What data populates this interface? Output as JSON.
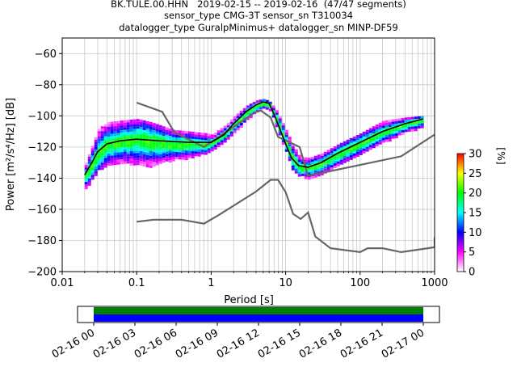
{
  "title": {
    "line1": "BK.TULE.00.HHN   2019-02-15 -- 2019-02-16  (47/47 segments)",
    "line2": "sensor_type CMG-3T sensor_sn T310034",
    "line3": "datalogger_type GuralpMinimus+ datalogger_sn MINP-DF59"
  },
  "chart_data": [
    {
      "type": "heatmap",
      "title": "BK.TULE.00.HHN   2019-02-15 -- 2019-02-16  (47/47 segments)",
      "xlabel": "Period [s]",
      "ylabel": "Power [m²/s⁴/Hz] [dB]",
      "x_scale": "log",
      "xlim": [
        0.01,
        1000
      ],
      "ylim": [
        -200,
        -50
      ],
      "grid": true,
      "x_ticks": [
        {
          "value": 0.01,
          "label": "0.01"
        },
        {
          "value": 0.1,
          "label": "0.1"
        },
        {
          "value": 1,
          "label": "1"
        },
        {
          "value": 10,
          "label": "10"
        },
        {
          "value": 100,
          "label": "100"
        },
        {
          "value": 1000,
          "label": "1000"
        }
      ],
      "y_ticks": [
        {
          "value": -60,
          "label": "−60"
        },
        {
          "value": -80,
          "label": "−80"
        },
        {
          "value": -100,
          "label": "−100"
        },
        {
          "value": -120,
          "label": "−120"
        },
        {
          "value": -140,
          "label": "−140"
        },
        {
          "value": -160,
          "label": "−160"
        },
        {
          "value": -180,
          "label": "−180"
        },
        {
          "value": -200,
          "label": "−200"
        }
      ],
      "colorbar": {
        "label": "[%]",
        "range": [
          0,
          30
        ],
        "ticks": [
          {
            "value": 0,
            "label": "0"
          },
          {
            "value": 5,
            "label": "5"
          },
          {
            "value": 10,
            "label": "10"
          },
          {
            "value": 15,
            "label": "15"
          },
          {
            "value": 20,
            "label": "20"
          },
          {
            "value": 25,
            "label": "25"
          },
          {
            "value": 30,
            "label": "30"
          }
        ],
        "colors": [
          "#ffffff",
          "#ff00ff",
          "#0000ff",
          "#00ffff",
          "#00ff00",
          "#ffff00",
          "#ff0000"
        ]
      },
      "psd_band": [
        {
          "period": 0.02,
          "low": -146,
          "high": -130,
          "mean": -138
        },
        {
          "period": 0.025,
          "low": -140,
          "high": -118,
          "mean": -130
        },
        {
          "period": 0.03,
          "low": -134,
          "high": -108,
          "mean": -123
        },
        {
          "period": 0.04,
          "low": -132,
          "high": -104,
          "mean": -118
        },
        {
          "period": 0.06,
          "low": -130,
          "high": -103,
          "mean": -116
        },
        {
          "period": 0.1,
          "low": -131,
          "high": -102,
          "mean": -115
        },
        {
          "period": 0.15,
          "low": -132,
          "high": -104,
          "mean": -116
        },
        {
          "period": 0.2,
          "low": -130,
          "high": -106,
          "mean": -117
        },
        {
          "period": 0.3,
          "low": -128,
          "high": -109,
          "mean": -118
        },
        {
          "period": 0.5,
          "low": -127,
          "high": -110,
          "mean": -118
        },
        {
          "period": 0.8,
          "low": -124,
          "high": -111,
          "mean": -118
        },
        {
          "period": 1.0,
          "low": -122,
          "high": -112,
          "mean": -117
        },
        {
          "period": 1.5,
          "low": -116,
          "high": -106,
          "mean": -111
        },
        {
          "period": 2.0,
          "low": -110,
          "high": -100,
          "mean": -105
        },
        {
          "period": 3.0,
          "low": -102,
          "high": -93,
          "mean": -97
        },
        {
          "period": 4.0,
          "low": -97,
          "high": -90,
          "mean": -93
        },
        {
          "period": 5.0,
          "low": -95,
          "high": -89,
          "mean": -91
        },
        {
          "period": 6.0,
          "low": -96,
          "high": -91,
          "mean": -93
        },
        {
          "period": 7.0,
          "low": -104,
          "high": -95,
          "mean": -100
        },
        {
          "period": 8.0,
          "low": -112,
          "high": -100,
          "mean": -106
        },
        {
          "period": 10.0,
          "low": -124,
          "high": -110,
          "mean": -118
        },
        {
          "period": 12.0,
          "low": -134,
          "high": -118,
          "mean": -127
        },
        {
          "period": 15.0,
          "low": -138,
          "high": -126,
          "mean": -133
        },
        {
          "period": 20.0,
          "low": -140,
          "high": -127,
          "mean": -133
        },
        {
          "period": 30.0,
          "low": -137,
          "high": -124,
          "mean": -130
        },
        {
          "period": 50.0,
          "low": -132,
          "high": -118,
          "mean": -124
        },
        {
          "period": 100.0,
          "low": -125,
          "high": -111,
          "mean": -117
        },
        {
          "period": 200.0,
          "low": -117,
          "high": -103,
          "mean": -110
        },
        {
          "period": 400.0,
          "low": -110,
          "high": -101,
          "mean": -105
        },
        {
          "period": 700.0,
          "low": -107,
          "high": -100,
          "mean": -102
        }
      ],
      "mean_curve": [
        [
          0.02,
          -138
        ],
        [
          0.025,
          -130
        ],
        [
          0.03,
          -123
        ],
        [
          0.04,
          -118
        ],
        [
          0.06,
          -116
        ],
        [
          0.1,
          -115
        ],
        [
          0.2,
          -116
        ],
        [
          0.5,
          -117
        ],
        [
          1.0,
          -117
        ],
        [
          1.5,
          -112
        ],
        [
          2.0,
          -105
        ],
        [
          3.0,
          -97
        ],
        [
          4.0,
          -93
        ],
        [
          5.0,
          -91
        ],
        [
          6.0,
          -92
        ],
        [
          7.0,
          -99
        ],
        [
          8.0,
          -106
        ],
        [
          10.0,
          -118
        ],
        [
          12.0,
          -127
        ],
        [
          15.0,
          -132
        ],
        [
          20.0,
          -133
        ],
        [
          30.0,
          -130
        ],
        [
          50.0,
          -124
        ],
        [
          100.0,
          -117
        ],
        [
          200.0,
          -110
        ],
        [
          400.0,
          -105
        ],
        [
          700.0,
          -102
        ]
      ],
      "noise_models": [
        {
          "kind": "high",
          "points": [
            [
              0.1,
              -91.5
            ],
            [
              0.22,
              -97.4
            ],
            [
              0.32,
              -110.5
            ],
            [
              0.8,
              -120
            ],
            [
              3.8,
              -98
            ],
            [
              4.6,
              -96.5
            ],
            [
              6.3,
              -101
            ],
            [
              7.9,
              -113.5
            ],
            [
              15.4,
              -120
            ],
            [
              20,
              -138.5
            ],
            [
              354.8,
              -126
            ],
            [
              1000,
              -112
            ]
          ]
        },
        {
          "kind": "low",
          "points": [
            [
              0.1,
              -168
            ],
            [
              0.17,
              -166.7
            ],
            [
              0.4,
              -166.7
            ],
            [
              0.8,
              -169.2
            ],
            [
              1.26,
              -163.7
            ],
            [
              4,
              -148.6
            ],
            [
              6.3,
              -141.1
            ],
            [
              7.9,
              -141.1
            ],
            [
              10,
              -149
            ],
            [
              12.6,
              -163
            ],
            [
              15.9,
              -166.2
            ],
            [
              20,
              -162
            ],
            [
              25,
              -177.5
            ],
            [
              40,
              -185
            ],
            [
              100,
              -187.5
            ],
            [
              126,
              -185
            ],
            [
              200,
              -185
            ],
            [
              354.8,
              -187.5
            ],
            [
              1000,
              -184.4
            ],
            [
              1000,
              -178
            ]
          ]
        }
      ]
    },
    {
      "type": "timeline",
      "xlim": [
        "2019-02-16 00",
        "2019-02-17 00"
      ],
      "x_ticks": [
        {
          "label": "02-16 00"
        },
        {
          "label": "02-16 03"
        },
        {
          "label": "02-16 06"
        },
        {
          "label": "02-16 09"
        },
        {
          "label": "02-16 12"
        },
        {
          "label": "02-16 15"
        },
        {
          "label": "02-16 18"
        },
        {
          "label": "02-16 21"
        },
        {
          "label": "02-17 00"
        }
      ],
      "rows": [
        {
          "color": "#008000",
          "start_hour": 0,
          "end_hour": 24
        },
        {
          "color": "#0000ff",
          "start_hour": 0,
          "end_hour": 24
        }
      ]
    }
  ]
}
